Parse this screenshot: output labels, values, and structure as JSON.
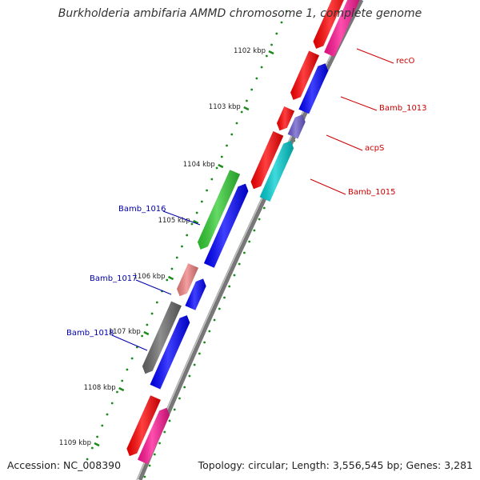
{
  "title": "Burkholderia ambifaria AMMD chromosome 1, complete genome",
  "accession": "Accession: NC_008390",
  "topology": "Topology: circular; Length: 3,556,545 bp; Genes: 3,281",
  "ruler": [
    {
      "label": "1102 kbp",
      "kbp": 1102
    },
    {
      "label": "1103 kbp",
      "kbp": 1103
    },
    {
      "label": "1104 kbp",
      "kbp": 1104
    },
    {
      "label": "1105 kbp",
      "kbp": 1105
    },
    {
      "label": "1106 kbp",
      "kbp": 1106
    },
    {
      "label": "1107 kbp",
      "kbp": 1107
    },
    {
      "label": "1108 kbp",
      "kbp": 1108
    },
    {
      "label": "1109 kbp",
      "kbp": 1109
    }
  ],
  "gene_labels": [
    {
      "name": "recO",
      "color": "#cc0000"
    },
    {
      "name": "Bamb_1013",
      "color": "#cc0000"
    },
    {
      "name": "acpS",
      "color": "#cc0000"
    },
    {
      "name": "Bamb_1015",
      "color": "#cc0000"
    },
    {
      "name": "Bamb_1016",
      "color": "#0000aa"
    },
    {
      "name": "Bamb_1017",
      "color": "#0000aa"
    },
    {
      "name": "Bamb_1018",
      "color": "#0000aa"
    }
  ],
  "colors": {
    "backbone": "#777777",
    "tick": "#1a8a1a",
    "red": "#ff0000",
    "magenta": "#ff1493",
    "blue": "#0000ff",
    "purple": "#6a5acd",
    "cyan": "#00ced1",
    "green": "#32cd32",
    "salmon": "#f08080",
    "gray": "#696969"
  }
}
